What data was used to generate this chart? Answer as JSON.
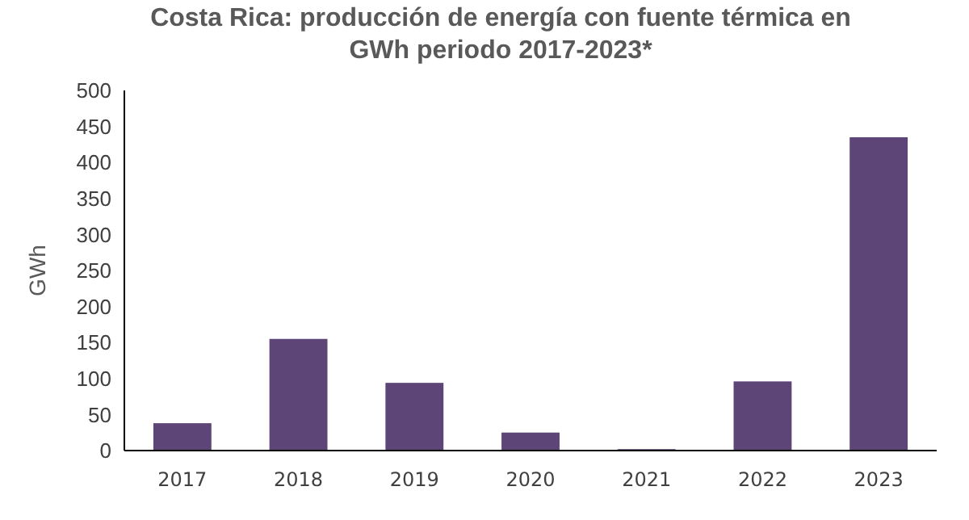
{
  "chart_data": {
    "type": "bar",
    "title": "Costa Rica: producción de energía con fuente térmica en GWh periodo 2017-2023*",
    "ylabel": "GWh",
    "categories": [
      "2017",
      "2018",
      "2019",
      "2020",
      "2021",
      "2022",
      "2023"
    ],
    "values": [
      38,
      155,
      94,
      25,
      2,
      96,
      435
    ],
    "color": "#5e4577",
    "ylim": [
      0,
      500
    ],
    "yticks": [
      0,
      50,
      100,
      150,
      200,
      250,
      300,
      350,
      400,
      450,
      500
    ],
    "grid": false
  }
}
